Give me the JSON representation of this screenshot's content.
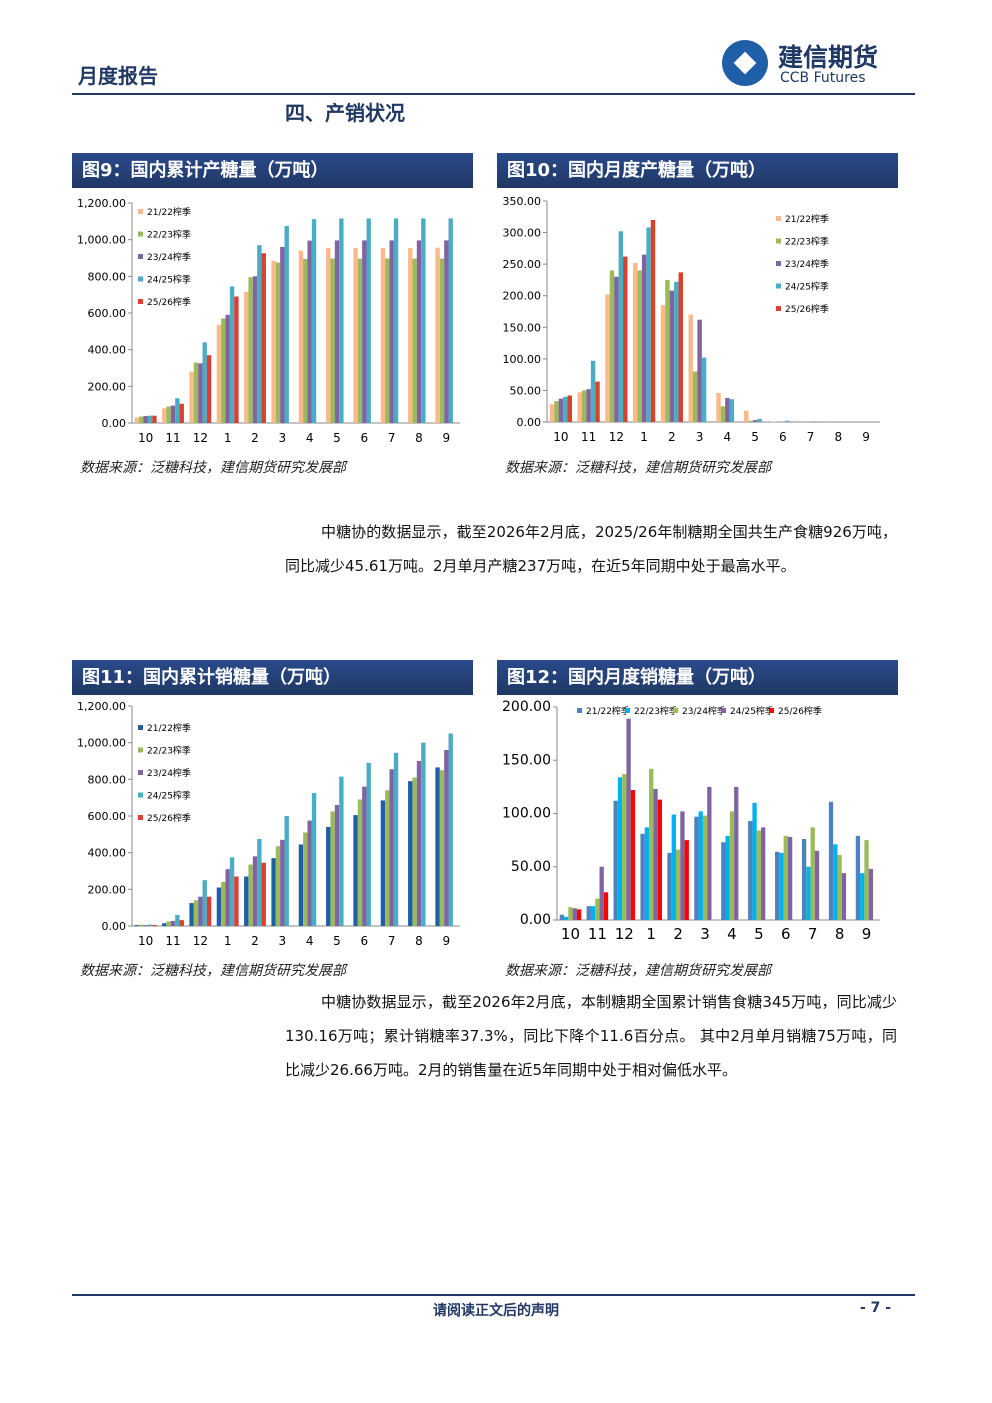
{
  "header": {
    "title": "月度报告",
    "logo_cn": "建信期货",
    "logo_en": "CCB Futures"
  },
  "section_title": "四、产销状况",
  "chart_data": [
    {
      "type": "bar",
      "title": "图9：国内累计产糖量（万吨）",
      "source": "数据来源：泛糖科技，建信期货研究发展部",
      "legend": "upper left",
      "categories": [
        "10",
        "11",
        "12",
        "1",
        "2",
        "3",
        "4",
        "5",
        "6",
        "7",
        "8",
        "9"
      ],
      "ylim": [
        0,
        1200
      ],
      "yticks": [
        {
          "value": 0,
          "label": "0.00"
        },
        {
          "value": 200,
          "label": "200.00"
        },
        {
          "value": 400,
          "label": "400.00"
        },
        {
          "value": 600,
          "label": "600.00"
        },
        {
          "value": 800,
          "label": "800.00"
        },
        {
          "value": 1000,
          "label": "1,000.00"
        },
        {
          "value": 1200,
          "label": "1,200.00"
        }
      ],
      "series": [
        {
          "name": "21/22榨季",
          "color": "#f9b98a",
          "values": [
            30,
            80,
            280,
            535,
            715,
            885,
            940,
            955,
            955,
            955,
            955,
            956
          ]
        },
        {
          "name": "22/23榨季",
          "color": "#9bbb59",
          "values": [
            35,
            90,
            330,
            570,
            795,
            875,
            895,
            897,
            897,
            897,
            897,
            897
          ]
        },
        {
          "name": "23/24榨季",
          "color": "#8064a2",
          "values": [
            38,
            95,
            325,
            590,
            800,
            960,
            995,
            996,
            996,
            996,
            996,
            996
          ]
        },
        {
          "name": "24/25榨季",
          "color": "#4bacc6",
          "values": [
            40,
            135,
            440,
            745,
            970,
            1075,
            1112,
            1116,
            1116,
            1116,
            1116,
            1116
          ]
        },
        {
          "name": "25/26榨季",
          "color": "#d9412e",
          "values": [
            40,
            105,
            370,
            690,
            926,
            null,
            null,
            null,
            null,
            null,
            null,
            null
          ]
        }
      ]
    },
    {
      "type": "bar",
      "title": "图10：国内月度产糖量（万吨）",
      "source": "数据来源：泛糖科技，建信期货研究发展部",
      "legend": "upper right",
      "categories": [
        "10",
        "11",
        "12",
        "1",
        "2",
        "3",
        "4",
        "5",
        "6",
        "7",
        "8",
        "9"
      ],
      "ylim": [
        0,
        350
      ],
      "yticks": [
        {
          "value": 0,
          "label": "0.00"
        },
        {
          "value": 50,
          "label": "50.00"
        },
        {
          "value": 100,
          "label": "100.00"
        },
        {
          "value": 150,
          "label": "150.00"
        },
        {
          "value": 200,
          "label": "200.00"
        },
        {
          "value": 250,
          "label": "250.00"
        },
        {
          "value": 300,
          "label": "300.00"
        },
        {
          "value": 350,
          "label": "350.00"
        }
      ],
      "series": [
        {
          "name": "21/22榨季",
          "color": "#f9b98a",
          "values": [
            28,
            47,
            202,
            252,
            185,
            170,
            46,
            18,
            1,
            0,
            0,
            0
          ]
        },
        {
          "name": "22/23榨季",
          "color": "#9bbb59",
          "values": [
            33,
            50,
            240,
            240,
            225,
            80,
            25,
            2,
            0,
            0,
            0,
            0
          ]
        },
        {
          "name": "23/24榨季",
          "color": "#8064a2",
          "values": [
            37,
            52,
            230,
            265,
            208,
            162,
            38,
            3,
            0,
            0,
            0,
            0
          ]
        },
        {
          "name": "24/25榨季",
          "color": "#4bacc6",
          "values": [
            40,
            97,
            302,
            308,
            222,
            102,
            36,
            5,
            2,
            1,
            0,
            0
          ]
        },
        {
          "name": "25/26榨季",
          "color": "#d9412e",
          "values": [
            42,
            64,
            262,
            320,
            237,
            null,
            null,
            null,
            null,
            null,
            null,
            null
          ]
        }
      ]
    },
    {
      "type": "bar",
      "title": "图11：国内累计销糖量（万吨）",
      "source": "数据来源：泛糖科技，建信期货研究发展部",
      "legend": "upper left",
      "categories": [
        "10",
        "11",
        "12",
        "1",
        "2",
        "3",
        "4",
        "5",
        "6",
        "7",
        "8",
        "9"
      ],
      "ylim": [
        0,
        1200
      ],
      "yticks": [
        {
          "value": 0,
          "label": "0.00"
        },
        {
          "value": 200,
          "label": "200.00"
        },
        {
          "value": 400,
          "label": "400.00"
        },
        {
          "value": 600,
          "label": "600.00"
        },
        {
          "value": 800,
          "label": "800.00"
        },
        {
          "value": 1000,
          "label": "1,000.00"
        },
        {
          "value": 1200,
          "label": "1,200.00"
        }
      ],
      "series": [
        {
          "name": "21/22榨季",
          "color": "#1f5fa8",
          "values": [
            5,
            15,
            125,
            210,
            270,
            370,
            445,
            540,
            605,
            685,
            790,
            865
          ]
        },
        {
          "name": "22/23榨季",
          "color": "#9bbb59",
          "values": [
            7,
            25,
            140,
            240,
            335,
            435,
            510,
            625,
            690,
            740,
            810,
            850
          ]
        },
        {
          "name": "23/24榨季",
          "color": "#8064a2",
          "values": [
            5,
            28,
            160,
            310,
            380,
            470,
            575,
            660,
            760,
            855,
            900,
            960
          ]
        },
        {
          "name": "24/25榨季",
          "color": "#4bacc6",
          "values": [
            8,
            60,
            250,
            375,
            475,
            600,
            725,
            815,
            890,
            945,
            1000,
            1050
          ]
        },
        {
          "name": "25/26榨季",
          "color": "#d9412e",
          "values": [
            6,
            32,
            160,
            270,
            345,
            null,
            null,
            null,
            null,
            null,
            null,
            null
          ]
        }
      ]
    },
    {
      "type": "bar",
      "title": "图12：国内月度销糖量（万吨）",
      "source": "数据来源：泛糖科技，建信期货研究发展部",
      "legend": "top",
      "categories": [
        "10",
        "11",
        "12",
        "1",
        "2",
        "3",
        "4",
        "5",
        "6",
        "7",
        "8",
        "9"
      ],
      "ylim": [
        0,
        200
      ],
      "yticks": [
        {
          "value": 0,
          "label": "0.00"
        },
        {
          "value": 50,
          "label": "50.00"
        },
        {
          "value": 100,
          "label": "100.00"
        },
        {
          "value": 150,
          "label": "150.00"
        },
        {
          "value": 200,
          "label": "200.00"
        }
      ],
      "series": [
        {
          "name": "21/22榨季",
          "color": "#4f81bd",
          "values": [
            5,
            13,
            112,
            81,
            63,
            97,
            73,
            93,
            64,
            76,
            111,
            79
          ]
        },
        {
          "name": "22/23榨季",
          "color": "#00b0f0",
          "values": [
            3,
            13,
            134,
            87,
            99,
            102,
            79,
            110,
            63,
            50,
            71,
            44
          ]
        },
        {
          "name": "23/24榨季",
          "color": "#9bbb59",
          "values": [
            12,
            20,
            137,
            142,
            66,
            98,
            102,
            84,
            79,
            87,
            61,
            75
          ]
        },
        {
          "name": "24/25榨季",
          "color": "#8064a2",
          "values": [
            11,
            50,
            189,
            123,
            102,
            125,
            125,
            87,
            78,
            65,
            44,
            48
          ]
        },
        {
          "name": "25/26榨季",
          "color": "#ff0000",
          "values": [
            10,
            26,
            122,
            113,
            75,
            null,
            null,
            null,
            null,
            null,
            null,
            null
          ]
        }
      ]
    }
  ],
  "paragraphs": [
    "中糖协的数据显示，截至2026年2月底，2025/26年制糖期全国共生产食糖926万吨，同比减少45.61万吨。2月单月产糖237万吨，在近5年同期中处于最高水平。",
    "中糖协数据显示，截至2026年2月底，本制糖期全国累计销售食糖345万吨，同比减少130.16万吨；累计销糖率37.3%，同比下降个11.6百分点。 其中2月单月销糖75万吨，同比减少26.66万吨。2月的销售量在近5年同期中处于相对偏低水平。"
  ],
  "footer": {
    "notice": "请阅读正文后的声明",
    "page": "- 7 -"
  }
}
